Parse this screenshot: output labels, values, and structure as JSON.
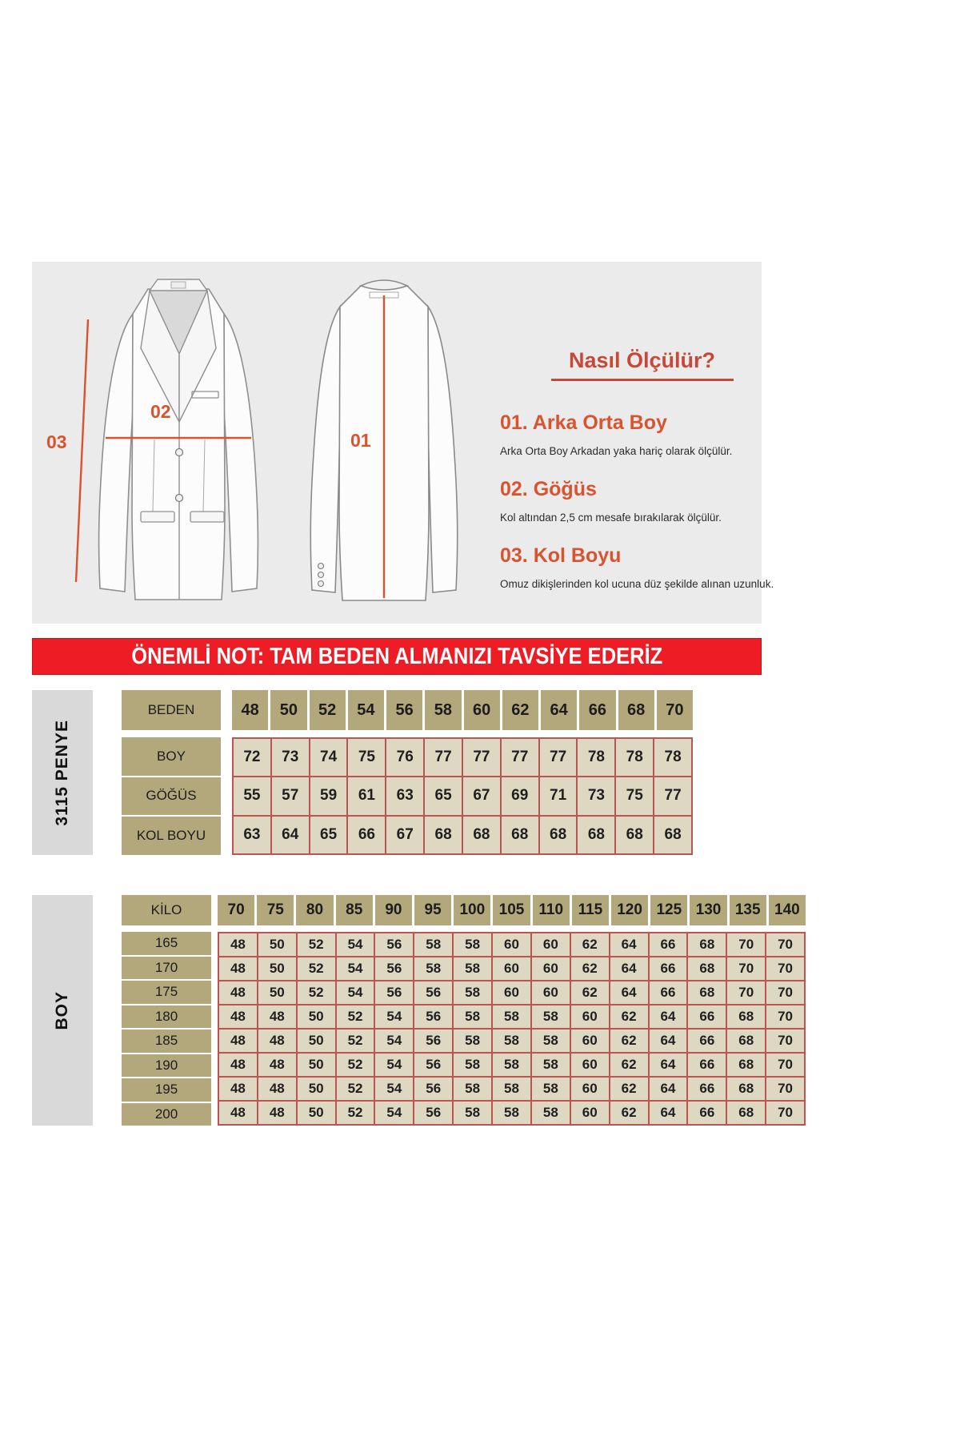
{
  "colors": {
    "accent_orange": "#d9532f",
    "title_red": "#c84837",
    "banner_red": "#ee1c24",
    "header_khaki": "#b2a87c",
    "cell_tan": "#ded8c2",
    "grid_red": "#bb5552",
    "sidebar_gray": "#d9d9d9",
    "diagram_gray": "#ebebeb"
  },
  "diagram": {
    "markers": {
      "back_length": "01",
      "chest": "02",
      "sleeve": "03"
    },
    "how_to_measure": {
      "title": "Nasıl Ölçülür?",
      "items": [
        {
          "number": "01.",
          "title": "Arka Orta Boy",
          "description": "Arka Orta Boy Arkadan yaka hariç olarak ölçülür."
        },
        {
          "number": "02.",
          "title": "Göğüs",
          "description": "Kol altından 2,5 cm mesafe bırakılarak ölçülür."
        },
        {
          "number": "03.",
          "title": "Kol Boyu",
          "description": "Omuz dikişlerinden kol ucuna düz şekilde alınan uzunluk."
        }
      ]
    }
  },
  "banner": {
    "text": "ÖNEMLİ NOT: TAM BEDEN ALMANIZI TAVSİYE EDERİZ"
  },
  "size_table": {
    "side_label": "3115 PENYE",
    "header_label": "BEDEN",
    "header_values": [
      "48",
      "50",
      "52",
      "54",
      "56",
      "58",
      "60",
      "62",
      "64",
      "66",
      "68",
      "70"
    ],
    "rows": [
      {
        "label": "BOY",
        "values": [
          "72",
          "73",
          "74",
          "75",
          "76",
          "77",
          "77",
          "77",
          "77",
          "78",
          "78",
          "78"
        ]
      },
      {
        "label": "GÖĞÜS",
        "values": [
          "55",
          "57",
          "59",
          "61",
          "63",
          "65",
          "67",
          "69",
          "71",
          "73",
          "75",
          "77"
        ]
      },
      {
        "label": "KOL BOYU",
        "values": [
          "63",
          "64",
          "65",
          "66",
          "67",
          "68",
          "68",
          "68",
          "68",
          "68",
          "68",
          "68"
        ]
      }
    ]
  },
  "weight_table": {
    "side_label": "BOY",
    "header_label": "KİLO",
    "header_values": [
      "70",
      "75",
      "80",
      "85",
      "90",
      "95",
      "100",
      "105",
      "110",
      "115",
      "120",
      "125",
      "130",
      "135",
      "140"
    ],
    "rows": [
      {
        "label": "165",
        "values": [
          "48",
          "50",
          "52",
          "54",
          "56",
          "58",
          "58",
          "60",
          "60",
          "62",
          "64",
          "66",
          "68",
          "70",
          "70"
        ]
      },
      {
        "label": "170",
        "values": [
          "48",
          "50",
          "52",
          "54",
          "56",
          "58",
          "58",
          "60",
          "60",
          "62",
          "64",
          "66",
          "68",
          "70",
          "70"
        ]
      },
      {
        "label": "175",
        "values": [
          "48",
          "50",
          "52",
          "54",
          "56",
          "56",
          "58",
          "60",
          "60",
          "62",
          "64",
          "66",
          "68",
          "70",
          "70"
        ]
      },
      {
        "label": "180",
        "values": [
          "48",
          "48",
          "50",
          "52",
          "54",
          "56",
          "58",
          "58",
          "58",
          "60",
          "62",
          "64",
          "66",
          "68",
          "70"
        ]
      },
      {
        "label": "185",
        "values": [
          "48",
          "48",
          "50",
          "52",
          "54",
          "56",
          "58",
          "58",
          "58",
          "60",
          "62",
          "64",
          "66",
          "68",
          "70"
        ]
      },
      {
        "label": "190",
        "values": [
          "48",
          "48",
          "50",
          "52",
          "54",
          "56",
          "58",
          "58",
          "58",
          "60",
          "62",
          "64",
          "66",
          "68",
          "70"
        ]
      },
      {
        "label": "195",
        "values": [
          "48",
          "48",
          "50",
          "52",
          "54",
          "56",
          "58",
          "58",
          "58",
          "60",
          "62",
          "64",
          "66",
          "68",
          "70"
        ]
      },
      {
        "label": "200",
        "values": [
          "48",
          "48",
          "50",
          "52",
          "54",
          "56",
          "58",
          "58",
          "58",
          "60",
          "62",
          "64",
          "66",
          "68",
          "70"
        ]
      }
    ]
  }
}
